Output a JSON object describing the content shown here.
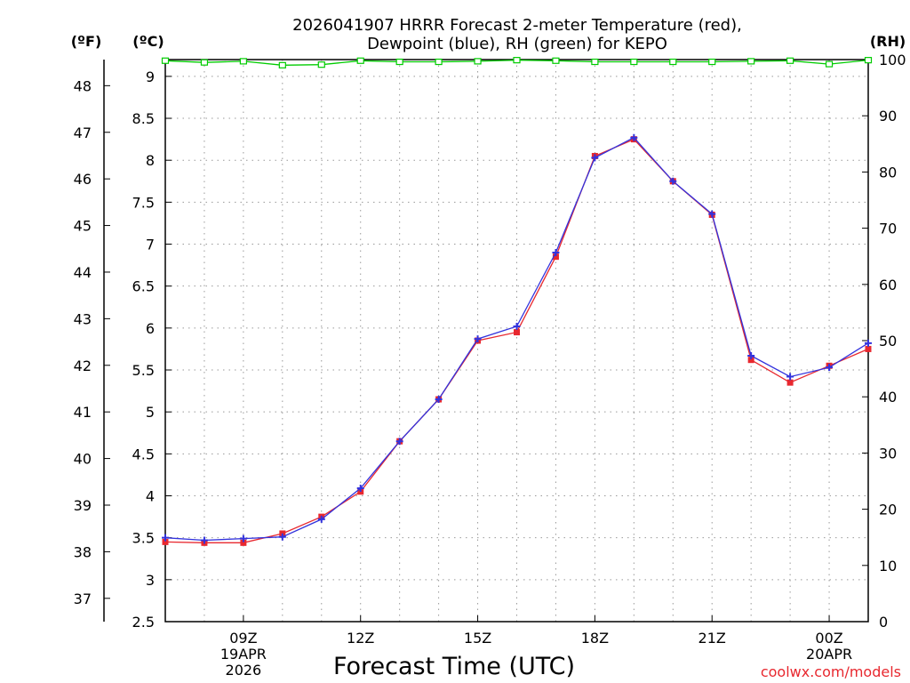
{
  "chart_data": {
    "type": "line",
    "title_line1": "2026041907 HRRR Forecast 2-meter Temperature (red),",
    "title_line2": "Dewpoint (blue), RH (green) for KEPO",
    "xlabel": "Forecast Time (UTC)",
    "unit_f": "(ºF)",
    "unit_c": "(ºC)",
    "unit_rh": "(RH)",
    "credit": "coolwx.com/models",
    "x_hours": [
      7,
      8,
      9,
      10,
      11,
      12,
      13,
      14,
      15,
      16,
      17,
      18,
      19,
      20,
      21,
      22,
      23,
      24,
      25
    ],
    "xlim": [
      7,
      25
    ],
    "x_ticks": [
      {
        "hour": 9,
        "lines": [
          "09Z",
          "19APR",
          "2026"
        ]
      },
      {
        "hour": 12,
        "lines": [
          "12Z"
        ]
      },
      {
        "hour": 15,
        "lines": [
          "15Z"
        ]
      },
      {
        "hour": 18,
        "lines": [
          "18Z"
        ]
      },
      {
        "hour": 21,
        "lines": [
          "21Z"
        ]
      },
      {
        "hour": 24,
        "lines": [
          "00Z",
          "20APR"
        ]
      }
    ],
    "y_celsius": {
      "lim": [
        2.5,
        9.2
      ],
      "ticks": [
        2.5,
        3,
        3.5,
        4,
        4.5,
        5,
        5.5,
        6,
        6.5,
        7,
        7.5,
        8,
        8.5,
        9
      ]
    },
    "y_fahrenheit": {
      "ticks": [
        37,
        38,
        39,
        40,
        41,
        42,
        43,
        44,
        45,
        46,
        47,
        48
      ]
    },
    "y_rh": {
      "lim": [
        0,
        100
      ],
      "ticks": [
        0,
        10,
        20,
        30,
        40,
        50,
        60,
        70,
        80,
        90,
        100
      ]
    },
    "series": [
      {
        "name": "Temperature",
        "unit": "C",
        "color": "#e8282f",
        "values": [
          3.45,
          3.44,
          3.44,
          3.55,
          3.75,
          4.05,
          4.65,
          5.15,
          5.85,
          5.95,
          6.85,
          8.05,
          8.25,
          7.75,
          7.35,
          5.62,
          5.35,
          5.55,
          5.75
        ]
      },
      {
        "name": "Dewpoint",
        "unit": "C",
        "color": "#3333dd",
        "values": [
          3.5,
          3.47,
          3.49,
          3.51,
          3.72,
          4.09,
          4.65,
          5.15,
          5.87,
          6.02,
          6.9,
          8.03,
          8.27,
          7.75,
          7.36,
          5.67,
          5.42,
          5.53,
          5.82
        ]
      },
      {
        "name": "RH",
        "unit": "%",
        "color": "#00cc00",
        "values": [
          99.8,
          99.5,
          99.7,
          99.0,
          99.1,
          99.8,
          99.6,
          99.6,
          99.7,
          99.9,
          99.8,
          99.6,
          99.6,
          99.6,
          99.6,
          99.7,
          99.8,
          99.2,
          99.9
        ]
      }
    ]
  }
}
